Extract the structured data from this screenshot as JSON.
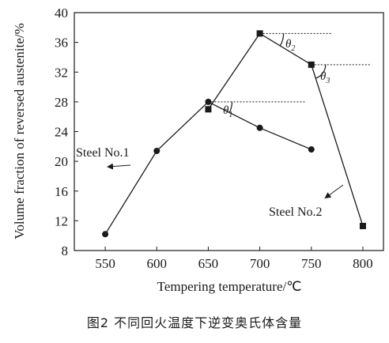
{
  "chart_data": {
    "type": "line",
    "xlabel": "Tempering temperature/℃",
    "ylabel": "Volume fraction of reversed austenite/%",
    "xlim": [
      520,
      820
    ],
    "ylim": [
      8,
      40
    ],
    "x_ticks": [
      550,
      600,
      650,
      700,
      750,
      800
    ],
    "y_ticks": [
      8,
      12,
      16,
      20,
      24,
      28,
      32,
      36,
      40
    ],
    "grid": false,
    "series": [
      {
        "name": "Steel No.1",
        "marker": "circle",
        "points": [
          {
            "x": 550,
            "y": 10.2
          },
          {
            "x": 600,
            "y": 21.4
          },
          {
            "x": 650,
            "y": 28.0
          },
          {
            "x": 700,
            "y": 24.5
          },
          {
            "x": 750,
            "y": 21.6
          }
        ]
      },
      {
        "name": "Steel No.2",
        "marker": "square",
        "points": [
          {
            "x": 650,
            "y": 27.0
          },
          {
            "x": 700,
            "y": 37.2
          },
          {
            "x": 750,
            "y": 33.0
          },
          {
            "x": 800,
            "y": 11.3
          }
        ]
      }
    ],
    "annotations": [
      {
        "label": "θ",
        "sub": "1"
      },
      {
        "label": "θ",
        "sub": "2"
      },
      {
        "label": "θ",
        "sub": "3"
      }
    ]
  },
  "caption": "图2  不同回火温度下逆变奥氏体含量"
}
